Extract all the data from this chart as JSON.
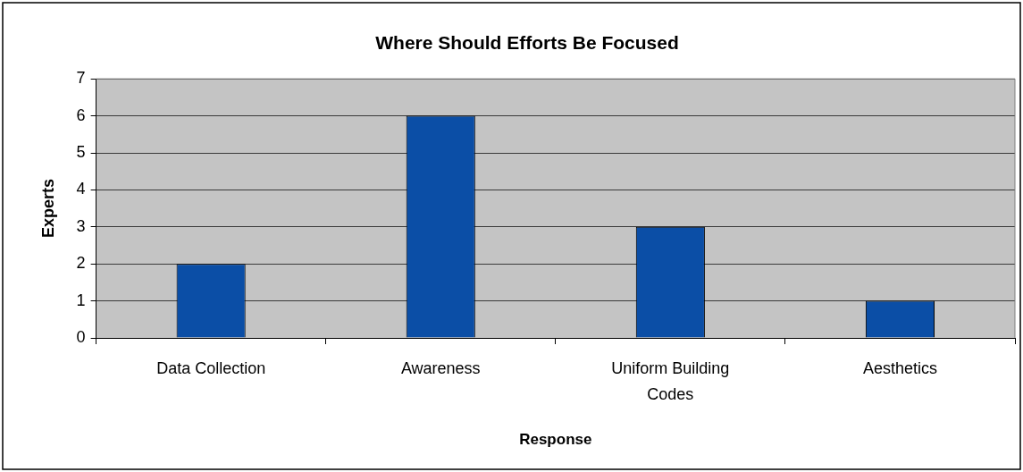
{
  "chart_data": {
    "type": "bar",
    "title": "Where Should Efforts Be Focused",
    "xlabel": "Response",
    "ylabel": "Experts",
    "categories": [
      "Data Collection",
      "Awareness",
      "Uniform Building Codes",
      "Aesthetics"
    ],
    "values": [
      2,
      6,
      3,
      1
    ],
    "color": "#0b4ea6",
    "ylim": [
      0,
      7
    ],
    "yticks": [
      0,
      1,
      2,
      3,
      4,
      5,
      6,
      7
    ],
    "grid": "y",
    "legend": false
  }
}
